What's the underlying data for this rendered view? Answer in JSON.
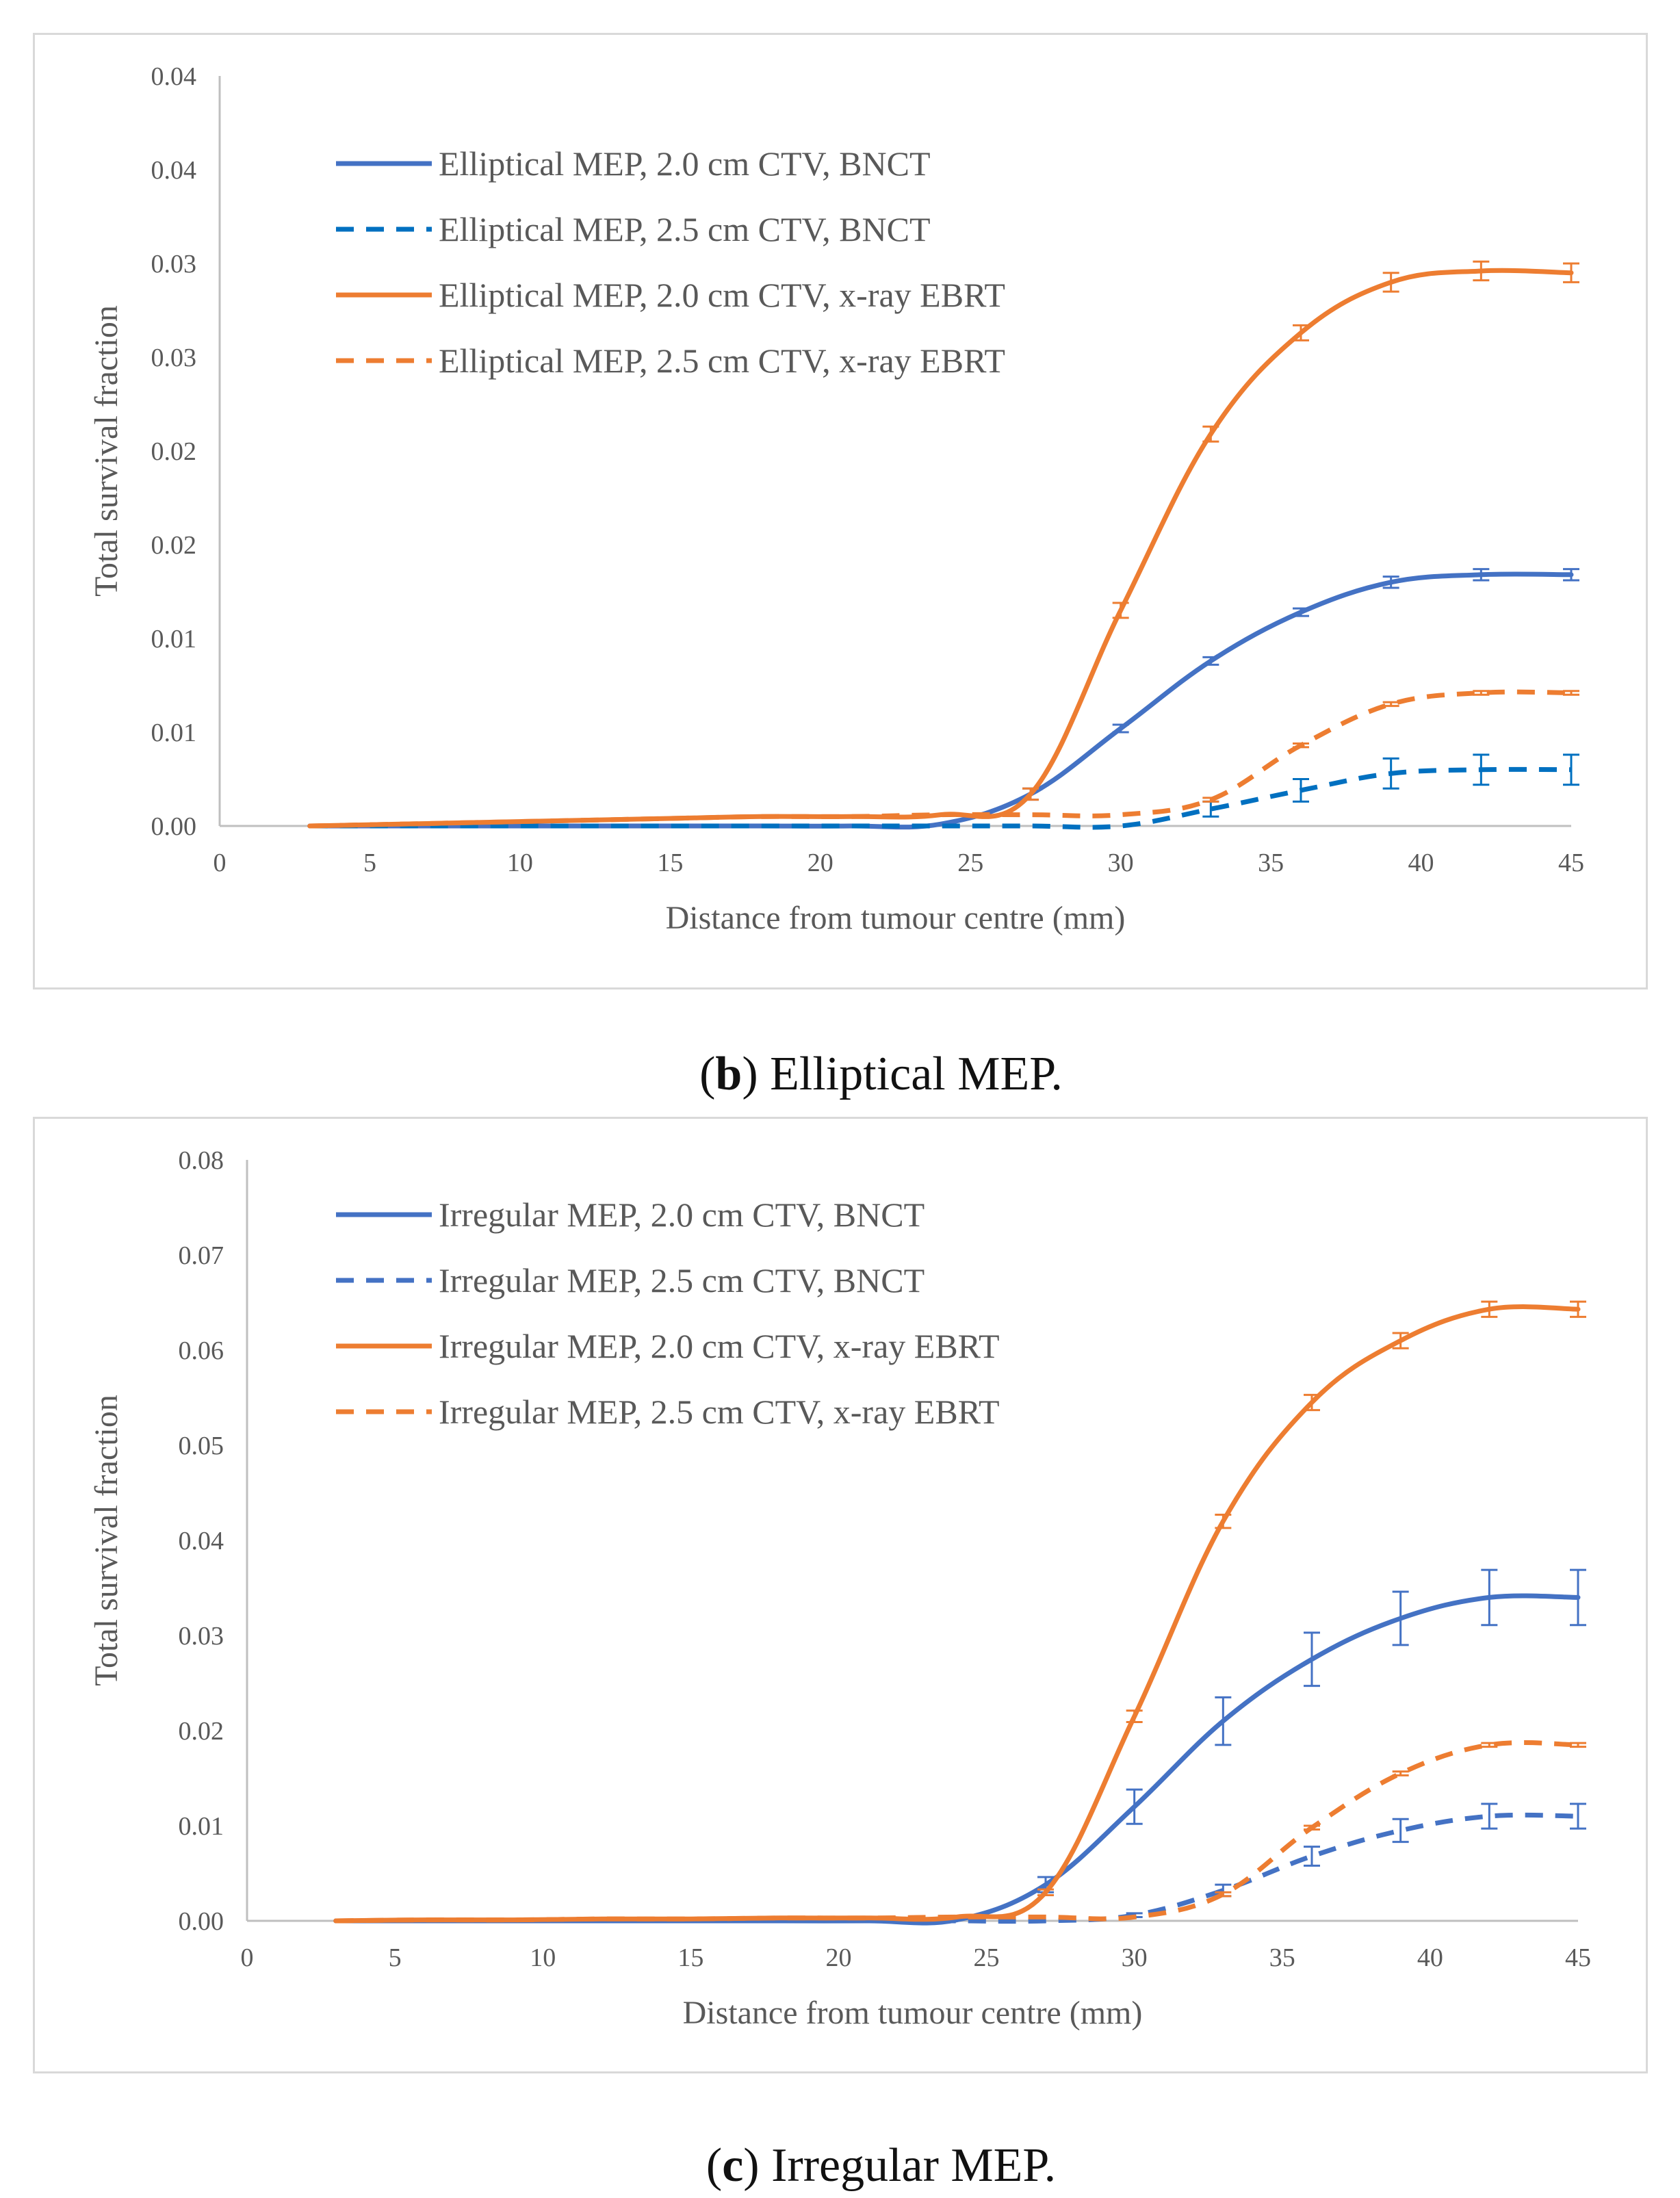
{
  "charts": [
    {
      "id": "b",
      "caption_letter": "b",
      "caption_text": "Elliptical MEP.",
      "chart_data": {
        "type": "line",
        "title": "",
        "xlabel": "Distance from tumour centre (mm)",
        "ylabel": "Total survival fraction",
        "xlim": [
          0,
          45
        ],
        "ylim": [
          0,
          0.04
        ],
        "x_ticks": [
          0,
          5,
          10,
          15,
          20,
          25,
          30,
          35,
          40,
          45
        ],
        "y_tick_labels": [
          "0.00",
          "0.01",
          "0.01",
          "0.02",
          "0.02",
          "0.03",
          "0.03",
          "0.04",
          "0.04"
        ],
        "grid": false,
        "legend_position": "top-left",
        "series": [
          {
            "name": "Elliptical MEP, 2.0 cm CTV, BNCT",
            "color": "#4472C4",
            "dash": false,
            "x": [
              3,
              6,
              9,
              12,
              15,
              18,
              21,
              24,
              27,
              30,
              33,
              36,
              39,
              42,
              45
            ],
            "y": [
              0,
              0,
              0,
              0,
              0,
              0,
              0,
              0.0001,
              0.0017,
              0.0052,
              0.0088,
              0.0114,
              0.013,
              0.0134,
              0.0134
            ],
            "err": [
              0,
              0,
              0,
              0,
              0,
              0,
              0,
              0,
              0.0003,
              0.0002,
              0.0002,
              0.0002,
              0.0003,
              0.0003,
              0.0003
            ]
          },
          {
            "name": "Elliptical MEP, 2.5 cm CTV, BNCT",
            "color": "#0070C0",
            "dash": true,
            "x": [
              3,
              6,
              9,
              12,
              15,
              18,
              21,
              24,
              27,
              30,
              33,
              36,
              39,
              42,
              45
            ],
            "y": [
              0,
              0,
              0,
              0,
              0,
              0,
              0,
              0,
              0,
              0,
              0.0009,
              0.0019,
              0.0028,
              0.003,
              0.003
            ],
            "err": [
              0,
              0,
              0,
              0,
              0,
              0,
              0,
              0,
              0,
              0,
              0.0004,
              0.0006,
              0.0008,
              0.0008,
              0.0008
            ]
          },
          {
            "name": "Elliptical MEP, 2.0 cm CTV, x-ray EBRT",
            "color": "#ED7D31",
            "dash": false,
            "x": [
              3,
              6,
              9,
              12,
              15,
              18,
              21,
              24,
              27,
              30,
              33,
              36,
              39,
              42,
              45
            ],
            "y": [
              0,
              0.0001,
              0.0002,
              0.0003,
              0.0004,
              0.0005,
              0.0005,
              0.0006,
              0.0017,
              0.0115,
              0.0209,
              0.0263,
              0.029,
              0.0296,
              0.0295
            ],
            "err": [
              0,
              0,
              0,
              0,
              0,
              0,
              0,
              0,
              0.0003,
              0.0004,
              0.0004,
              0.0004,
              0.0005,
              0.0005,
              0.0005
            ]
          },
          {
            "name": "Elliptical MEP, 2.5 cm CTV, x-ray EBRT",
            "color": "#ED7D31",
            "dash": true,
            "x": [
              3,
              6,
              9,
              12,
              15,
              18,
              21,
              24,
              27,
              30,
              33,
              36,
              39,
              42,
              45
            ],
            "y": [
              0,
              0.0001,
              0.0002,
              0.0003,
              0.0004,
              0.0005,
              0.0005,
              0.0006,
              0.0006,
              0.0006,
              0.0014,
              0.0043,
              0.0065,
              0.0071,
              0.0071
            ],
            "err": [
              0,
              0,
              0,
              0,
              0,
              0,
              0,
              0,
              0,
              0,
              0.0001,
              0.0001,
              0.0001,
              0.0001,
              0.0001
            ]
          }
        ]
      }
    },
    {
      "id": "c",
      "caption_letter": "c",
      "caption_text": "Irregular MEP.",
      "chart_data": {
        "type": "line",
        "title": "",
        "xlabel": "Distance from tumour centre (mm)",
        "ylabel": "Total survival fraction",
        "xlim": [
          0,
          45
        ],
        "ylim": [
          0,
          0.08
        ],
        "x_ticks": [
          0,
          5,
          10,
          15,
          20,
          25,
          30,
          35,
          40,
          45
        ],
        "y_tick_labels": [
          "0.00",
          "0.01",
          "0.02",
          "0.03",
          "0.04",
          "0.05",
          "0.06",
          "0.07",
          "0.08"
        ],
        "grid": false,
        "legend_position": "top-left",
        "series": [
          {
            "name": "Irregular MEP, 2.0 cm CTV, BNCT",
            "color": "#4472C4",
            "dash": false,
            "x": [
              3,
              6,
              9,
              12,
              15,
              18,
              21,
              24,
              27,
              30,
              33,
              36,
              39,
              42,
              45
            ],
            "y": [
              0,
              0,
              0,
              0,
              0,
              0,
              0,
              0.0001,
              0.0038,
              0.012,
              0.021,
              0.0275,
              0.0318,
              0.034,
              0.034
            ],
            "err": [
              0,
              0,
              0,
              0,
              0,
              0,
              0,
              0,
              0.0008,
              0.0018,
              0.0025,
              0.0028,
              0.0028,
              0.0029,
              0.0029
            ]
          },
          {
            "name": "Irregular MEP, 2.5 cm CTV, BNCT",
            "color": "#4472C4",
            "dash": true,
            "x": [
              3,
              6,
              9,
              12,
              15,
              18,
              21,
              24,
              27,
              30,
              33,
              36,
              39,
              42,
              45
            ],
            "y": [
              0,
              0,
              0,
              0,
              0,
              0,
              0,
              0,
              0,
              0.0006,
              0.0032,
              0.0068,
              0.0095,
              0.011,
              0.011
            ],
            "err": [
              0,
              0,
              0,
              0,
              0,
              0,
              0,
              0,
              0,
              0.0002,
              0.0006,
              0.001,
              0.0012,
              0.0013,
              0.0013
            ]
          },
          {
            "name": "Irregular MEP, 2.0 cm CTV, x-ray EBRT",
            "color": "#ED7D31",
            "dash": false,
            "x": [
              3,
              6,
              9,
              12,
              15,
              18,
              21,
              24,
              27,
              30,
              33,
              36,
              39,
              42,
              45
            ],
            "y": [
              0,
              0.0001,
              0.0001,
              0.0002,
              0.0002,
              0.0003,
              0.0003,
              0.0004,
              0.003,
              0.0215,
              0.042,
              0.0545,
              0.061,
              0.0643,
              0.0643
            ],
            "err": [
              0,
              0,
              0,
              0,
              0,
              0,
              0,
              0,
              0.0003,
              0.0006,
              0.0007,
              0.0008,
              0.0008,
              0.0008,
              0.0008
            ]
          },
          {
            "name": "Irregular MEP, 2.5 cm CTV, x-ray EBRT",
            "color": "#ED7D31",
            "dash": true,
            "x": [
              3,
              6,
              9,
              12,
              15,
              18,
              21,
              24,
              27,
              30,
              33,
              36,
              39,
              42,
              45
            ],
            "y": [
              0,
              0.0001,
              0.0001,
              0.0002,
              0.0002,
              0.0003,
              0.0003,
              0.0004,
              0.0004,
              0.0004,
              0.0028,
              0.0098,
              0.0155,
              0.0185,
              0.0185
            ],
            "err": [
              0,
              0,
              0,
              0,
              0,
              0,
              0,
              0,
              0,
              0,
              0.0002,
              0.0002,
              0.0002,
              0.0002,
              0.0002
            ]
          }
        ]
      }
    }
  ]
}
